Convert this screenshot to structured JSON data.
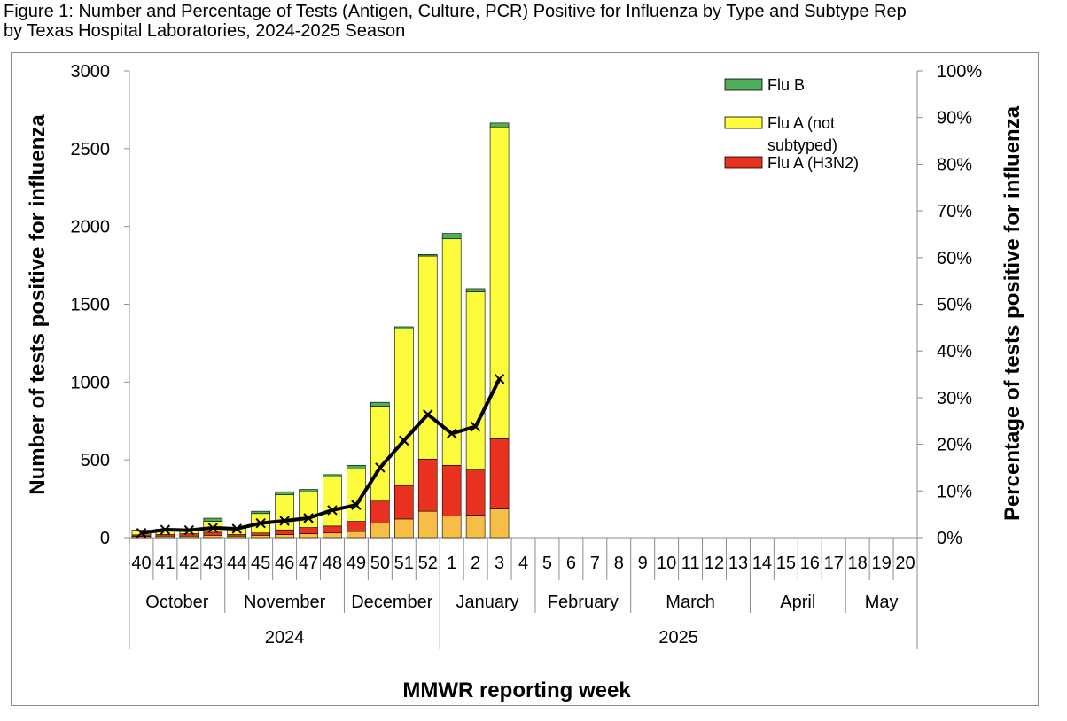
{
  "figure": {
    "title_line1": "Figure 1: Number and Percentage of Tests (Antigen, Culture, PCR) Positive for Influenza by Type and Subtype Rep",
    "title_line2": "by Texas Hospital Laboratories, 2024-2025 Season"
  },
  "chart_data": {
    "type": "bar",
    "stacked": true,
    "xlabel": "MMWR reporting week",
    "ylabel": "Number of tests positive for influenza",
    "y2label": "Percentage  of  tests  positive for influenza",
    "ylim": [
      0,
      3000
    ],
    "yticks": [
      "0",
      "500",
      "1000",
      "1500",
      "2000",
      "2500",
      "3000"
    ],
    "y2lim": [
      0,
      100
    ],
    "y2ticks": [
      "0%",
      "10%",
      "20%",
      "30%",
      "40%",
      "50%",
      "60%",
      "70%",
      "80%",
      "90%",
      "100%"
    ],
    "grid": false,
    "legend_position": "top-right",
    "categories": [
      "40",
      "41",
      "42",
      "43",
      "44",
      "45",
      "46",
      "47",
      "48",
      "49",
      "50",
      "51",
      "52",
      "1",
      "2",
      "3",
      "4",
      "5",
      "6",
      "7",
      "8",
      "9",
      "10",
      "11",
      "12",
      "13",
      "14",
      "15",
      "16",
      "17",
      "18",
      "19",
      "20"
    ],
    "months": [
      {
        "label": "October",
        "weeks": 4
      },
      {
        "label": "November",
        "weeks": 5
      },
      {
        "label": "December",
        "weeks": 4
      },
      {
        "label": "January",
        "weeks": 4
      },
      {
        "label": "February",
        "weeks": 4
      },
      {
        "label": "March",
        "weeks": 5
      },
      {
        "label": "April",
        "weeks": 4
      },
      {
        "label": "May",
        "weeks": 3
      }
    ],
    "years": [
      {
        "label": "2024",
        "weeks": 13
      },
      {
        "label": "2025",
        "weeks": 20
      }
    ],
    "series": [
      {
        "name": "",
        "color": "#f6bd47",
        "values": [
          8,
          10,
          10,
          15,
          10,
          15,
          20,
          25,
          30,
          40,
          95,
          120,
          170,
          140,
          145,
          185,
          null,
          null,
          null,
          null,
          null,
          null,
          null,
          null,
          null,
          null,
          null,
          null,
          null,
          null,
          null,
          null,
          null
        ]
      },
      {
        "name": "Flu A (H3N2)",
        "color": "#e8311f",
        "values": [
          10,
          10,
          15,
          20,
          10,
          15,
          30,
          40,
          45,
          65,
          140,
          215,
          335,
          325,
          290,
          450,
          null,
          null,
          null,
          null,
          null,
          null,
          null,
          null,
          null,
          null,
          null,
          null,
          null,
          null,
          null,
          null,
          null
        ]
      },
      {
        "name": "Flu A (not subtyped)",
        "color": "#fcfc3c",
        "values": [
          25,
          30,
          25,
          70,
          40,
          125,
          225,
          230,
          315,
          335,
          610,
          1005,
          1305,
          1455,
          1145,
          2005,
          null,
          null,
          null,
          null,
          null,
          null,
          null,
          null,
          null,
          null,
          null,
          null,
          null,
          null,
          null,
          null,
          null
        ]
      },
      {
        "name": "Flu B",
        "color": "#4fad5b",
        "values": [
          5,
          5,
          5,
          20,
          5,
          15,
          20,
          15,
          15,
          25,
          25,
          15,
          10,
          35,
          20,
          25,
          null,
          null,
          null,
          null,
          null,
          null,
          null,
          null,
          null,
          null,
          null,
          null,
          null,
          null,
          null,
          null,
          null
        ]
      }
    ],
    "line": {
      "name": "",
      "color": "#000000",
      "axis": "right",
      "values": [
        1.0,
        1.7,
        1.6,
        2.1,
        1.9,
        3.1,
        3.6,
        4.2,
        5.9,
        7.0,
        15.0,
        20.8,
        26.4,
        22.3,
        23.8,
        34.0,
        null,
        null,
        null,
        null,
        null,
        null,
        null,
        null,
        null,
        null,
        null,
        null,
        null,
        null,
        null,
        null,
        null
      ]
    },
    "legend": [
      "Flu B",
      "Flu A (not subtyped)",
      "Flu A (H3N2)"
    ]
  }
}
